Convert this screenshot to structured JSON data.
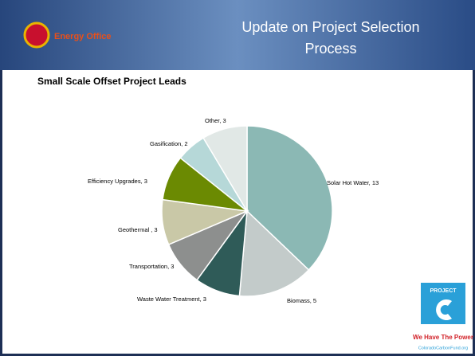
{
  "header": {
    "title_lines": [
      "Update on Project Selection",
      "Process"
    ],
    "logo_text": "Energy Office"
  },
  "chart_data": {
    "type": "pie",
    "title": "Small Scale Offset Project Leads",
    "values": [
      13,
      5,
      3,
      3,
      3,
      3,
      2,
      3
    ],
    "value_labels": [
      "Solar Hot Water, 13",
      "Biomass, 5",
      "Waste Water Treatment, 3",
      "Transportation, 3",
      "Geothermal , 3",
      "Efficiency Upgrades, 3",
      "Gasification, 2",
      "Other, 3"
    ],
    "colors": [
      "#8bb8b4",
      "#c3cbca",
      "#2f5b58",
      "#8d8f8e",
      "#c9c8a7",
      "#6b8a02",
      "#b6d8d8",
      "#e1e8e6"
    ]
  },
  "footer_logo": {
    "badge": "PROJECT",
    "tagline": "We Have The Power",
    "url": "ColoradoCarbonFund.org"
  }
}
